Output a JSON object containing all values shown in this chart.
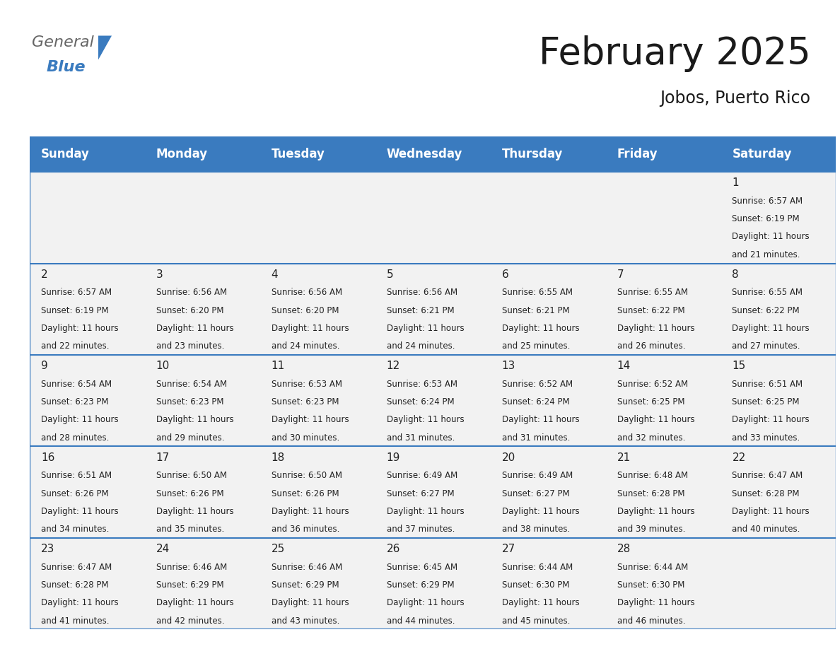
{
  "title": "February 2025",
  "subtitle": "Jobos, Puerto Rico",
  "days_of_week": [
    "Sunday",
    "Monday",
    "Tuesday",
    "Wednesday",
    "Thursday",
    "Friday",
    "Saturday"
  ],
  "header_bg": "#3A7BBF",
  "header_text_color": "#FFFFFF",
  "cell_bg": "#F2F2F2",
  "cell_text_color": "#222222",
  "grid_line_color": "#3A7BBF",
  "background_color": "#FFFFFF",
  "calendar_data": [
    {
      "day": 1,
      "col": 6,
      "row": 0,
      "sunrise": "6:57 AM",
      "sunset": "6:19 PM",
      "daylight_hours": 11,
      "daylight_minutes": 21
    },
    {
      "day": 2,
      "col": 0,
      "row": 1,
      "sunrise": "6:57 AM",
      "sunset": "6:19 PM",
      "daylight_hours": 11,
      "daylight_minutes": 22
    },
    {
      "day": 3,
      "col": 1,
      "row": 1,
      "sunrise": "6:56 AM",
      "sunset": "6:20 PM",
      "daylight_hours": 11,
      "daylight_minutes": 23
    },
    {
      "day": 4,
      "col": 2,
      "row": 1,
      "sunrise": "6:56 AM",
      "sunset": "6:20 PM",
      "daylight_hours": 11,
      "daylight_minutes": 24
    },
    {
      "day": 5,
      "col": 3,
      "row": 1,
      "sunrise": "6:56 AM",
      "sunset": "6:21 PM",
      "daylight_hours": 11,
      "daylight_minutes": 24
    },
    {
      "day": 6,
      "col": 4,
      "row": 1,
      "sunrise": "6:55 AM",
      "sunset": "6:21 PM",
      "daylight_hours": 11,
      "daylight_minutes": 25
    },
    {
      "day": 7,
      "col": 5,
      "row": 1,
      "sunrise": "6:55 AM",
      "sunset": "6:22 PM",
      "daylight_hours": 11,
      "daylight_minutes": 26
    },
    {
      "day": 8,
      "col": 6,
      "row": 1,
      "sunrise": "6:55 AM",
      "sunset": "6:22 PM",
      "daylight_hours": 11,
      "daylight_minutes": 27
    },
    {
      "day": 9,
      "col": 0,
      "row": 2,
      "sunrise": "6:54 AM",
      "sunset": "6:23 PM",
      "daylight_hours": 11,
      "daylight_minutes": 28
    },
    {
      "day": 10,
      "col": 1,
      "row": 2,
      "sunrise": "6:54 AM",
      "sunset": "6:23 PM",
      "daylight_hours": 11,
      "daylight_minutes": 29
    },
    {
      "day": 11,
      "col": 2,
      "row": 2,
      "sunrise": "6:53 AM",
      "sunset": "6:23 PM",
      "daylight_hours": 11,
      "daylight_minutes": 30
    },
    {
      "day": 12,
      "col": 3,
      "row": 2,
      "sunrise": "6:53 AM",
      "sunset": "6:24 PM",
      "daylight_hours": 11,
      "daylight_minutes": 31
    },
    {
      "day": 13,
      "col": 4,
      "row": 2,
      "sunrise": "6:52 AM",
      "sunset": "6:24 PM",
      "daylight_hours": 11,
      "daylight_minutes": 31
    },
    {
      "day": 14,
      "col": 5,
      "row": 2,
      "sunrise": "6:52 AM",
      "sunset": "6:25 PM",
      "daylight_hours": 11,
      "daylight_minutes": 32
    },
    {
      "day": 15,
      "col": 6,
      "row": 2,
      "sunrise": "6:51 AM",
      "sunset": "6:25 PM",
      "daylight_hours": 11,
      "daylight_minutes": 33
    },
    {
      "day": 16,
      "col": 0,
      "row": 3,
      "sunrise": "6:51 AM",
      "sunset": "6:26 PM",
      "daylight_hours": 11,
      "daylight_minutes": 34
    },
    {
      "day": 17,
      "col": 1,
      "row": 3,
      "sunrise": "6:50 AM",
      "sunset": "6:26 PM",
      "daylight_hours": 11,
      "daylight_minutes": 35
    },
    {
      "day": 18,
      "col": 2,
      "row": 3,
      "sunrise": "6:50 AM",
      "sunset": "6:26 PM",
      "daylight_hours": 11,
      "daylight_minutes": 36
    },
    {
      "day": 19,
      "col": 3,
      "row": 3,
      "sunrise": "6:49 AM",
      "sunset": "6:27 PM",
      "daylight_hours": 11,
      "daylight_minutes": 37
    },
    {
      "day": 20,
      "col": 4,
      "row": 3,
      "sunrise": "6:49 AM",
      "sunset": "6:27 PM",
      "daylight_hours": 11,
      "daylight_minutes": 38
    },
    {
      "day": 21,
      "col": 5,
      "row": 3,
      "sunrise": "6:48 AM",
      "sunset": "6:28 PM",
      "daylight_hours": 11,
      "daylight_minutes": 39
    },
    {
      "day": 22,
      "col": 6,
      "row": 3,
      "sunrise": "6:47 AM",
      "sunset": "6:28 PM",
      "daylight_hours": 11,
      "daylight_minutes": 40
    },
    {
      "day": 23,
      "col": 0,
      "row": 4,
      "sunrise": "6:47 AM",
      "sunset": "6:28 PM",
      "daylight_hours": 11,
      "daylight_minutes": 41
    },
    {
      "day": 24,
      "col": 1,
      "row": 4,
      "sunrise": "6:46 AM",
      "sunset": "6:29 PM",
      "daylight_hours": 11,
      "daylight_minutes": 42
    },
    {
      "day": 25,
      "col": 2,
      "row": 4,
      "sunrise": "6:46 AM",
      "sunset": "6:29 PM",
      "daylight_hours": 11,
      "daylight_minutes": 43
    },
    {
      "day": 26,
      "col": 3,
      "row": 4,
      "sunrise": "6:45 AM",
      "sunset": "6:29 PM",
      "daylight_hours": 11,
      "daylight_minutes": 44
    },
    {
      "day": 27,
      "col": 4,
      "row": 4,
      "sunrise": "6:44 AM",
      "sunset": "6:30 PM",
      "daylight_hours": 11,
      "daylight_minutes": 45
    },
    {
      "day": 28,
      "col": 5,
      "row": 4,
      "sunrise": "6:44 AM",
      "sunset": "6:30 PM",
      "daylight_hours": 11,
      "daylight_minutes": 46
    }
  ],
  "num_rows": 5,
  "num_cols": 7,
  "title_fontsize": 38,
  "subtitle_fontsize": 17,
  "header_fontsize": 12,
  "day_num_fontsize": 11,
  "cell_text_fontsize": 8.5,
  "logo_general_color": "#666666",
  "logo_blue_color": "#3A7BBF",
  "logo_triangle_color": "#3A7BBF"
}
